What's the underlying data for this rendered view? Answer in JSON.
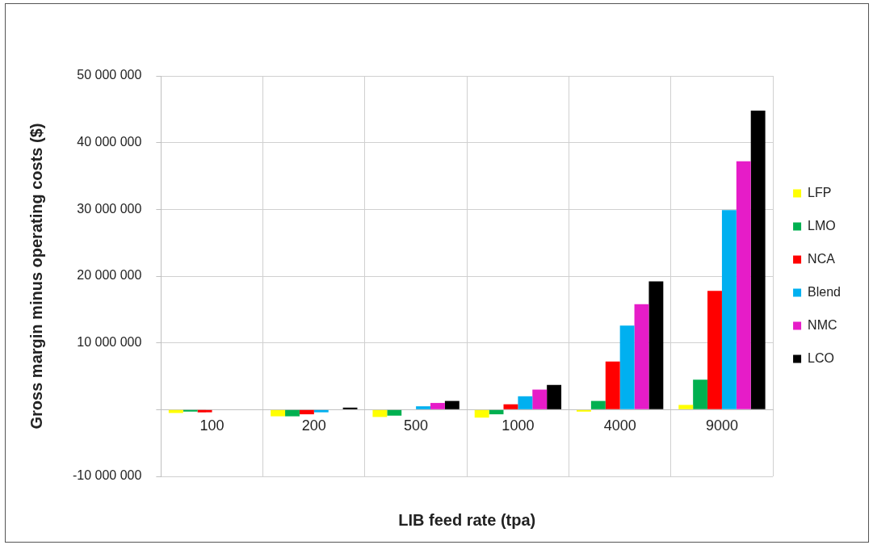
{
  "chart_data": {
    "type": "bar",
    "xlabel": "LIB feed rate (tpa)",
    "ylabel": "Gross margin minus operating costs ($)",
    "categories": [
      "100",
      "200",
      "500",
      "1000",
      "4000",
      "9000"
    ],
    "series": [
      {
        "name": "LFP",
        "color": "#ffff00",
        "values": [
          -500000,
          -1000000,
          -1100000,
          -1200000,
          -300000,
          700000
        ]
      },
      {
        "name": "LMO",
        "color": "#00b050",
        "values": [
          -300000,
          -1000000,
          -900000,
          -700000,
          1300000,
          4500000
        ]
      },
      {
        "name": "NCA",
        "color": "#ff0000",
        "values": [
          -400000,
          -700000,
          0,
          800000,
          7200000,
          17800000
        ]
      },
      {
        "name": "Blend",
        "color": "#00b0f0",
        "values": [
          0,
          -400000,
          500000,
          2000000,
          12600000,
          29900000
        ]
      },
      {
        "name": "NMC",
        "color": "#e61cc8",
        "values": [
          0,
          0,
          1000000,
          3000000,
          15800000,
          37200000
        ]
      },
      {
        "name": "LCO",
        "color": "#000000",
        "values": [
          0,
          300000,
          1300000,
          3700000,
          19200000,
          44800000
        ]
      }
    ],
    "ylim": [
      -10000000,
      50000000
    ],
    "yticks": [
      {
        "value": -10000000,
        "label": "-10 000 000"
      },
      {
        "value": 0,
        "label": null
      },
      {
        "value": 10000000,
        "label": "10 000 000"
      },
      {
        "value": 20000000,
        "label": "20 000 000"
      },
      {
        "value": 30000000,
        "label": "30 000 000"
      },
      {
        "value": 40000000,
        "label": "40 000 000"
      },
      {
        "value": 50000000,
        "label": "50 000 000"
      }
    ],
    "grid": true,
    "legend": "right"
  }
}
